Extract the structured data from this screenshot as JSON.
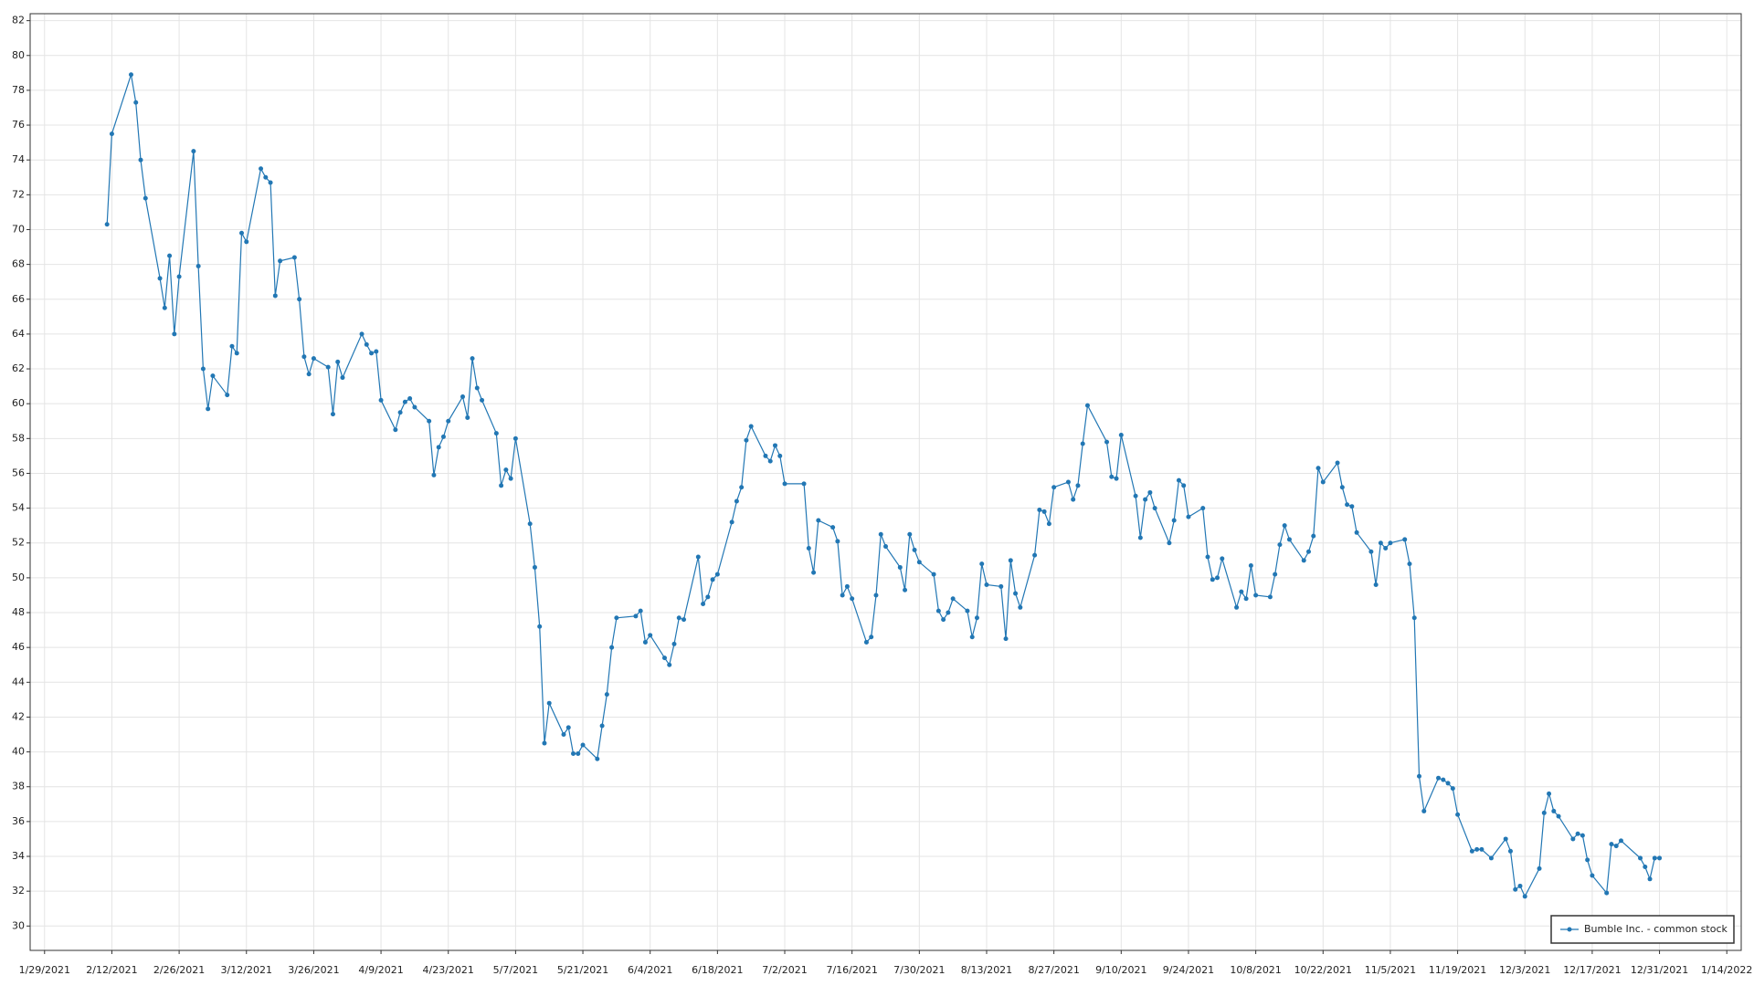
{
  "chart_data": {
    "type": "line",
    "x": [
      "2/11/2021",
      "2/12/2021",
      "2/16/2021",
      "2/17/2021",
      "2/18/2021",
      "2/19/2021",
      "2/22/2021",
      "2/23/2021",
      "2/24/2021",
      "2/25/2021",
      "2/26/2021",
      "3/1/2021",
      "3/2/2021",
      "3/3/2021",
      "3/4/2021",
      "3/5/2021",
      "3/8/2021",
      "3/9/2021",
      "3/10/2021",
      "3/11/2021",
      "3/12/2021",
      "3/15/2021",
      "3/16/2021",
      "3/17/2021",
      "3/18/2021",
      "3/19/2021",
      "3/22/2021",
      "3/23/2021",
      "3/24/2021",
      "3/25/2021",
      "3/26/2021",
      "3/29/2021",
      "3/30/2021",
      "3/31/2021",
      "4/1/2021",
      "4/5/2021",
      "4/6/2021",
      "4/7/2021",
      "4/8/2021",
      "4/9/2021",
      "4/12/2021",
      "4/13/2021",
      "4/14/2021",
      "4/15/2021",
      "4/16/2021",
      "4/19/2021",
      "4/20/2021",
      "4/21/2021",
      "4/22/2021",
      "4/23/2021",
      "4/26/2021",
      "4/27/2021",
      "4/28/2021",
      "4/29/2021",
      "4/30/2021",
      "5/3/2021",
      "5/4/2021",
      "5/5/2021",
      "5/6/2021",
      "5/7/2021",
      "5/10/2021",
      "5/11/2021",
      "5/12/2021",
      "5/13/2021",
      "5/14/2021",
      "5/17/2021",
      "5/18/2021",
      "5/19/2021",
      "5/20/2021",
      "5/21/2021",
      "5/24/2021",
      "5/25/2021",
      "5/26/2021",
      "5/27/2021",
      "5/28/2021",
      "6/1/2021",
      "6/2/2021",
      "6/3/2021",
      "6/4/2021",
      "6/7/2021",
      "6/8/2021",
      "6/9/2021",
      "6/10/2021",
      "6/11/2021",
      "6/14/2021",
      "6/15/2021",
      "6/16/2021",
      "6/17/2021",
      "6/18/2021",
      "6/21/2021",
      "6/22/2021",
      "6/23/2021",
      "6/24/2021",
      "6/25/2021",
      "6/28/2021",
      "6/29/2021",
      "6/30/2021",
      "7/1/2021",
      "7/2/2021",
      "7/6/2021",
      "7/7/2021",
      "7/8/2021",
      "7/9/2021",
      "7/12/2021",
      "7/13/2021",
      "7/14/2021",
      "7/15/2021",
      "7/16/2021",
      "7/19/2021",
      "7/20/2021",
      "7/21/2021",
      "7/22/2021",
      "7/23/2021",
      "7/26/2021",
      "7/27/2021",
      "7/28/2021",
      "7/29/2021",
      "7/30/2021",
      "8/2/2021",
      "8/3/2021",
      "8/4/2021",
      "8/5/2021",
      "8/6/2021",
      "8/9/2021",
      "8/10/2021",
      "8/11/2021",
      "8/12/2021",
      "8/13/2021",
      "8/16/2021",
      "8/17/2021",
      "8/18/2021",
      "8/19/2021",
      "8/20/2021",
      "8/23/2021",
      "8/24/2021",
      "8/25/2021",
      "8/26/2021",
      "8/27/2021",
      "8/30/2021",
      "8/31/2021",
      "9/1/2021",
      "9/2/2021",
      "9/3/2021",
      "9/7/2021",
      "9/8/2021",
      "9/9/2021",
      "9/10/2021",
      "9/13/2021",
      "9/14/2021",
      "9/15/2021",
      "9/16/2021",
      "9/17/2021",
      "9/20/2021",
      "9/21/2021",
      "9/22/2021",
      "9/23/2021",
      "9/24/2021",
      "9/27/2021",
      "9/28/2021",
      "9/29/2021",
      "9/30/2021",
      "10/1/2021",
      "10/4/2021",
      "10/5/2021",
      "10/6/2021",
      "10/7/2021",
      "10/8/2021",
      "10/11/2021",
      "10/12/2021",
      "10/13/2021",
      "10/14/2021",
      "10/15/2021",
      "10/18/2021",
      "10/19/2021",
      "10/20/2021",
      "10/21/2021",
      "10/22/2021",
      "10/25/2021",
      "10/26/2021",
      "10/27/2021",
      "10/28/2021",
      "10/29/2021",
      "11/1/2021",
      "11/2/2021",
      "11/3/2021",
      "11/4/2021",
      "11/5/2021",
      "11/8/2021",
      "11/9/2021",
      "11/10/2021",
      "11/11/2021",
      "11/12/2021",
      "11/15/2021",
      "11/16/2021",
      "11/17/2021",
      "11/18/2021",
      "11/19/2021",
      "11/22/2021",
      "11/23/2021",
      "11/24/2021",
      "11/26/2021",
      "11/29/2021",
      "11/30/2021",
      "12/1/2021",
      "12/2/2021",
      "12/3/2021",
      "12/6/2021",
      "12/7/2021",
      "12/8/2021",
      "12/9/2021",
      "12/10/2021",
      "12/13/2021",
      "12/14/2021",
      "12/15/2021",
      "12/16/2021",
      "12/17/2021",
      "12/20/2021",
      "12/21/2021",
      "12/22/2021",
      "12/23/2021",
      "12/27/2021",
      "12/28/2021",
      "12/29/2021",
      "12/30/2021",
      "12/31/2021"
    ],
    "series": [
      {
        "name": "Bumble Inc. - common stock",
        "color": "#2277b4",
        "values": [
          70.3,
          75.5,
          78.9,
          77.3,
          74.0,
          71.8,
          67.2,
          65.5,
          68.5,
          64.0,
          67.3,
          74.5,
          67.9,
          62.0,
          59.7,
          61.6,
          60.5,
          63.3,
          62.9,
          69.8,
          69.3,
          73.5,
          73.0,
          72.7,
          66.2,
          68.2,
          68.4,
          66.0,
          62.7,
          61.7,
          62.6,
          62.1,
          59.4,
          62.4,
          61.5,
          64.0,
          63.4,
          62.9,
          63.0,
          60.2,
          58.5,
          59.5,
          60.1,
          60.3,
          59.8,
          59.0,
          55.9,
          57.5,
          58.1,
          59.0,
          60.4,
          59.2,
          62.6,
          60.9,
          60.2,
          58.3,
          55.3,
          56.2,
          55.7,
          58.0,
          53.1,
          50.6,
          47.2,
          40.5,
          42.8,
          41.0,
          41.4,
          39.9,
          39.9,
          40.4,
          39.6,
          41.5,
          43.3,
          46.0,
          47.7,
          47.8,
          48.1,
          46.3,
          46.7,
          45.4,
          45.0,
          46.2,
          47.7,
          47.6,
          51.2,
          48.5,
          48.9,
          49.9,
          50.2,
          53.2,
          54.4,
          55.2,
          57.9,
          58.7,
          57.0,
          56.7,
          57.6,
          57.0,
          55.4,
          55.4,
          51.7,
          50.3,
          53.3,
          52.9,
          52.1,
          49.0,
          49.5,
          48.8,
          46.3,
          46.6,
          49.0,
          52.5,
          51.8,
          50.6,
          49.3,
          52.5,
          51.6,
          50.9,
          50.2,
          48.1,
          47.6,
          48.0,
          48.8,
          48.1,
          46.6,
          47.7,
          50.8,
          49.6,
          49.5,
          46.5,
          51.0,
          49.1,
          48.3,
          51.3,
          53.9,
          53.8,
          53.1,
          55.2,
          55.5,
          54.5,
          55.3,
          57.7,
          59.9,
          57.8,
          55.8,
          55.7,
          58.2,
          54.7,
          52.3,
          54.5,
          54.9,
          54.0,
          52.0,
          53.3,
          55.6,
          55.3,
          53.5,
          54.0,
          51.2,
          49.9,
          50.0,
          51.1,
          48.3,
          49.2,
          48.8,
          50.7,
          49.0,
          48.9,
          50.2,
          51.9,
          53.0,
          52.2,
          51.0,
          51.5,
          52.4,
          56.3,
          55.5,
          56.6,
          55.2,
          54.2,
          54.1,
          52.6,
          51.5,
          49.6,
          52.0,
          51.7,
          52.0,
          52.2,
          50.8,
          47.7,
          38.6,
          36.6,
          38.5,
          38.4,
          38.2,
          37.9,
          36.4,
          34.3,
          34.4,
          34.4,
          33.9,
          35.0,
          34.3,
          32.1,
          32.3,
          31.7,
          33.3,
          36.5,
          37.6,
          36.6,
          36.3,
          35.0,
          35.3,
          35.2,
          33.8,
          32.9,
          31.9,
          34.7,
          34.6,
          34.9,
          33.9,
          33.4,
          32.7,
          33.9,
          33.9
        ]
      }
    ],
    "xlim": [
      "1/26/2021",
      "1/17/2022"
    ],
    "xticks": [
      "1/29/2021",
      "2/12/2021",
      "2/26/2021",
      "3/12/2021",
      "3/26/2021",
      "4/9/2021",
      "4/23/2021",
      "5/7/2021",
      "5/21/2021",
      "6/4/2021",
      "6/18/2021",
      "7/2/2021",
      "7/16/2021",
      "7/30/2021",
      "8/13/2021",
      "8/27/2021",
      "9/10/2021",
      "9/24/2021",
      "10/8/2021",
      "10/22/2021",
      "11/5/2021",
      "11/19/2021",
      "12/3/2021",
      "12/17/2021",
      "12/31/2021",
      "1/14/2022"
    ],
    "ylim": [
      28.6,
      82.4
    ],
    "yticks": [
      30,
      32,
      34,
      36,
      38,
      40,
      42,
      44,
      46,
      48,
      50,
      52,
      54,
      56,
      58,
      60,
      62,
      64,
      66,
      68,
      70,
      72,
      74,
      76,
      78,
      80,
      82
    ],
    "grid": true,
    "legend": "lower right"
  }
}
